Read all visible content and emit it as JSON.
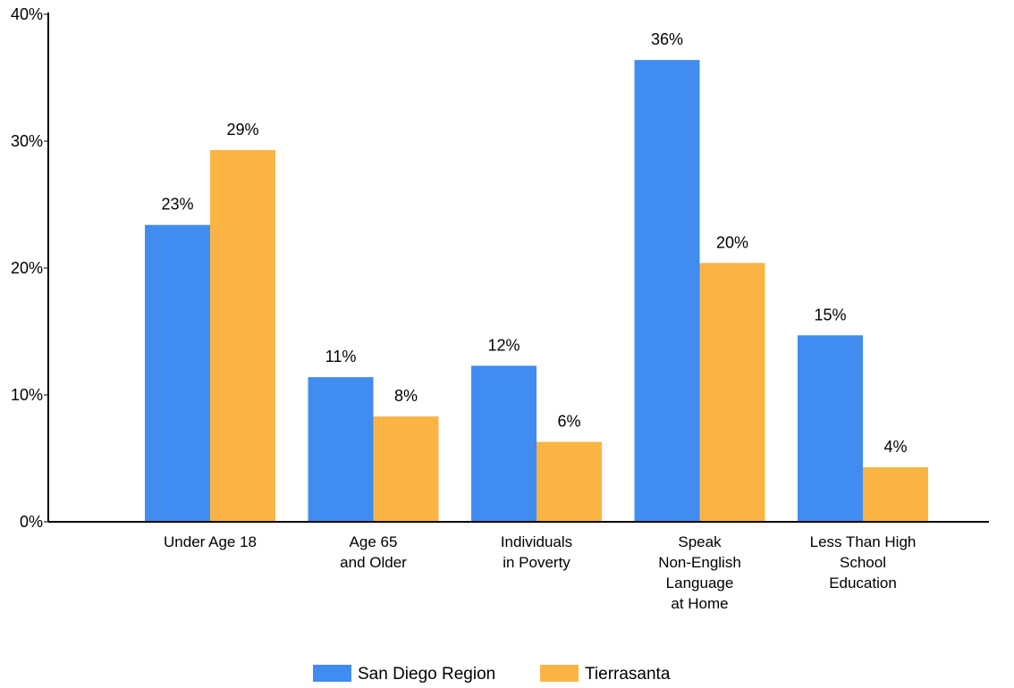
{
  "chart_data": {
    "type": "bar",
    "title": "",
    "xlabel": "",
    "ylabel": "",
    "ylim": [
      0,
      40
    ],
    "y_ticks": [
      0,
      10,
      20,
      30,
      40
    ],
    "y_tick_labels": [
      "0%",
      "10%",
      "20%",
      "30%",
      "40%"
    ],
    "grid": false,
    "legend_position": "bottom",
    "categories": [
      [
        "Under Age 18"
      ],
      [
        "Age 65",
        "and Older"
      ],
      [
        "Individuals",
        "in Poverty"
      ],
      [
        "Speak",
        "Non-English",
        "Language",
        "at Home"
      ],
      [
        "Less Than High",
        "School",
        "Education"
      ]
    ],
    "series": [
      {
        "name": "San Diego Region",
        "color": "#418CF0",
        "values": [
          23.4,
          11.4,
          12.3,
          36.4,
          14.7
        ],
        "labels": [
          "23%",
          "11%",
          "12%",
          "36%",
          "15%"
        ]
      },
      {
        "name": "Tierrasanta",
        "color": "#FAB444",
        "values": [
          29.3,
          8.3,
          6.3,
          20.4,
          4.3
        ],
        "labels": [
          "29%",
          "8%",
          "6%",
          "20%",
          "4%"
        ]
      }
    ]
  }
}
